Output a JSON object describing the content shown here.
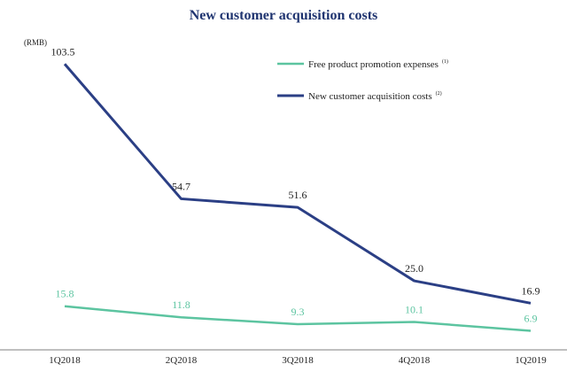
{
  "chart_data": {
    "type": "line",
    "title": "New customer acquisition costs",
    "unit_label": "(RMB)",
    "categories": [
      "1Q2018",
      "2Q2018",
      "3Q2018",
      "4Q2018",
      "1Q2019"
    ],
    "series": [
      {
        "name": "Free product promotion expenses",
        "footnote": "(1)",
        "color": "#5cc4a0",
        "values": [
          15.8,
          11.8,
          9.3,
          10.1,
          6.9
        ],
        "labels": [
          "15.8",
          "11.8",
          "9.3",
          "10.1",
          "6.9"
        ]
      },
      {
        "name": "New customer acquisition costs",
        "footnote": "(2)",
        "color": "#2b3f85",
        "values": [
          103.5,
          54.7,
          51.6,
          25.0,
          16.9
        ],
        "labels": [
          "103.5",
          "54.7",
          "51.6",
          "25.0",
          "16.9"
        ]
      }
    ],
    "ylim": [
      0,
      110
    ],
    "legend_position": "top-right",
    "grid": false
  },
  "colors": {
    "title": "#1f3470",
    "axis": "#7f7f7f",
    "text": "#222222"
  }
}
